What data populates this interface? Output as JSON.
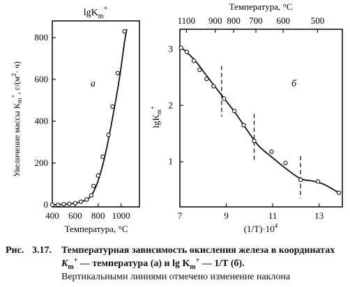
{
  "chart_data": [
    {
      "type": "scatter",
      "panel_label": "а",
      "top_label": "lgK",
      "top_label_sub": "m",
      "top_label_sup": "+",
      "xlabel": "Температура, °С",
      "ylabel_main": "Увеличение массы K",
      "ylabel_sub": "m",
      "ylabel_sup": "+",
      "ylabel_units": ", г/(м",
      "ylabel_units_sup": "2",
      "ylabel_units_end": "· ч)",
      "xlim": [
        400,
        1160
      ],
      "ylim": [
        -10,
        880
      ],
      "xticks": [
        400,
        600,
        800,
        1000
      ],
      "yticks": [
        0,
        200,
        400,
        600,
        800
      ],
      "series": [
        {
          "x": [
            400,
            450,
            500,
            550,
            600,
            650,
            700,
            740,
            770,
            810,
            860,
            900,
            940,
            980,
            1030,
            1090
          ],
          "y": [
            0,
            0,
            3,
            5,
            8,
            15,
            25,
            45,
            90,
            140,
            230,
            340,
            470,
            630,
            830,
            830
          ],
          "points": [
            [
              400,
              0
            ],
            [
              450,
              0
            ],
            [
              500,
              3
            ],
            [
              550,
              5
            ],
            [
              600,
              8
            ],
            [
              650,
              15
            ],
            [
              700,
              25
            ],
            [
              740,
              45
            ],
            [
              760,
              90
            ],
            [
              800,
              140
            ],
            [
              840,
              230
            ],
            [
              890,
              335
            ],
            [
              925,
              470
            ],
            [
              970,
              630
            ],
            [
              1030,
              830
            ]
          ],
          "fit": [
            [
              400,
              0
            ],
            [
              500,
              2
            ],
            [
              600,
              8
            ],
            [
              680,
              20
            ],
            [
              740,
              45
            ],
            [
              790,
              100
            ],
            [
              830,
              170
            ],
            [
              870,
              260
            ],
            [
              910,
              370
            ],
            [
              950,
              490
            ],
            [
              990,
              620
            ],
            [
              1030,
              780
            ],
            [
              1050,
              840
            ]
          ]
        }
      ]
    },
    {
      "type": "scatter",
      "panel_label": "б",
      "top_axis_label": "Температура, °С",
      "top_axis_ticks": [
        "1100",
        "900",
        "800",
        "700",
        "600",
        "500"
      ],
      "top_axis_tick_values_c": [
        1100,
        900,
        800,
        700,
        600,
        500
      ],
      "ylabel": "lgK",
      "ylabel_sub": "m",
      "ylabel_sup": "+",
      "xlabel": "(1/T)·10",
      "xlabel_sup": "4",
      "xlim": [
        7,
        14
      ],
      "ylim": [
        0.2,
        3.35
      ],
      "xticks": [
        7,
        9,
        11,
        13
      ],
      "yticks": [
        1,
        2,
        3
      ],
      "series": [
        {
          "points": [
            [
              7.05,
              3.02
            ],
            [
              7.3,
              2.95
            ],
            [
              7.6,
              2.79
            ],
            [
              7.85,
              2.63
            ],
            [
              8.15,
              2.47
            ],
            [
              8.45,
              2.34
            ],
            [
              8.9,
              2.12
            ],
            [
              9.35,
              1.9
            ],
            [
              9.75,
              1.65
            ],
            [
              10.2,
              1.37
            ],
            [
              10.95,
              1.18
            ],
            [
              11.55,
              0.98
            ],
            [
              12.2,
              0.68
            ],
            [
              12.95,
              0.65
            ],
            [
              13.85,
              0.45
            ]
          ],
          "fit": [
            [
              7.0,
              3.05
            ],
            [
              7.6,
              2.82
            ],
            [
              8.2,
              2.5
            ],
            [
              8.8,
              2.18
            ],
            [
              9.4,
              1.86
            ],
            [
              9.9,
              1.56
            ],
            [
              10.4,
              1.28
            ],
            [
              11.0,
              1.07
            ],
            [
              11.6,
              0.87
            ],
            [
              12.2,
              0.7
            ],
            [
              12.7,
              0.66
            ],
            [
              13.2,
              0.6
            ],
            [
              13.85,
              0.45
            ]
          ]
        }
      ],
      "slope_change_x": [
        8.8,
        10.2,
        12.2
      ],
      "slope_change_y_ranges": [
        [
          1.8,
          2.7
        ],
        [
          1.0,
          1.85
        ],
        [
          0.35,
          1.1
        ]
      ]
    }
  ],
  "caption": {
    "label": "Рис.",
    "number": "3.17.",
    "line1": "Температурная зависимость окисления железа в координатах",
    "line2_a": "K",
    "line2_a_sub": "m",
    "line2_a_sup": "+",
    "line2_b": " — температура (а) и lg K",
    "line2_c": " — 1/T (б).",
    "line3": "Вертикальными линиями отмечено изменение наклона"
  }
}
